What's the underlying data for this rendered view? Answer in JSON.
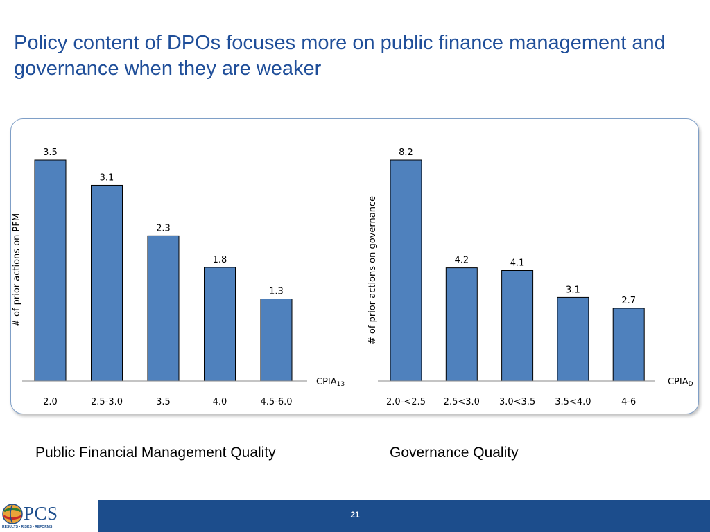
{
  "title": "Policy content of DPOs focuses more on public finance management and governance when they are weaker",
  "captions": {
    "left": "Public Financial Management Quality",
    "right": "Governance Quality"
  },
  "footer": {
    "page_number": "21",
    "logo_text": "PCS",
    "logo_tagline": "RESULTS • RISKS • REFORMS"
  },
  "colors": {
    "bar": "#4f81bd",
    "bar_stroke": "#000000",
    "title": "#1f4e99",
    "footer": "#1c4d8c"
  },
  "chart_data": [
    {
      "type": "bar",
      "categories": [
        "2.0",
        "2.5-3.0",
        "3.5",
        "4.0",
        "4.5-6.0"
      ],
      "values": [
        3.5,
        3.1,
        2.3,
        1.8,
        1.3
      ],
      "value_labels": [
        "3.5",
        "3.1",
        "2.3",
        "1.8",
        "1.3"
      ],
      "ylabel": "#  of prior actions on PFM",
      "xlabel_main": "CPIA",
      "xlabel_sub": "13",
      "ylim": [
        0,
        3.5
      ],
      "grid": false
    },
    {
      "type": "bar",
      "categories": [
        "2.0-<2.5",
        "2.5<3.0",
        "3.0<3.5",
        "3.5<4.0",
        "4-6"
      ],
      "values": [
        8.2,
        4.2,
        4.1,
        3.1,
        2.7
      ],
      "value_labels": [
        "8.2",
        "4.2",
        "4.1",
        "3.1",
        "2.7"
      ],
      "ylabel": "# of prior actions on governance",
      "xlabel_main": "CPIA",
      "xlabel_sub": "D",
      "ylim": [
        0,
        8.2
      ],
      "grid": false
    }
  ]
}
